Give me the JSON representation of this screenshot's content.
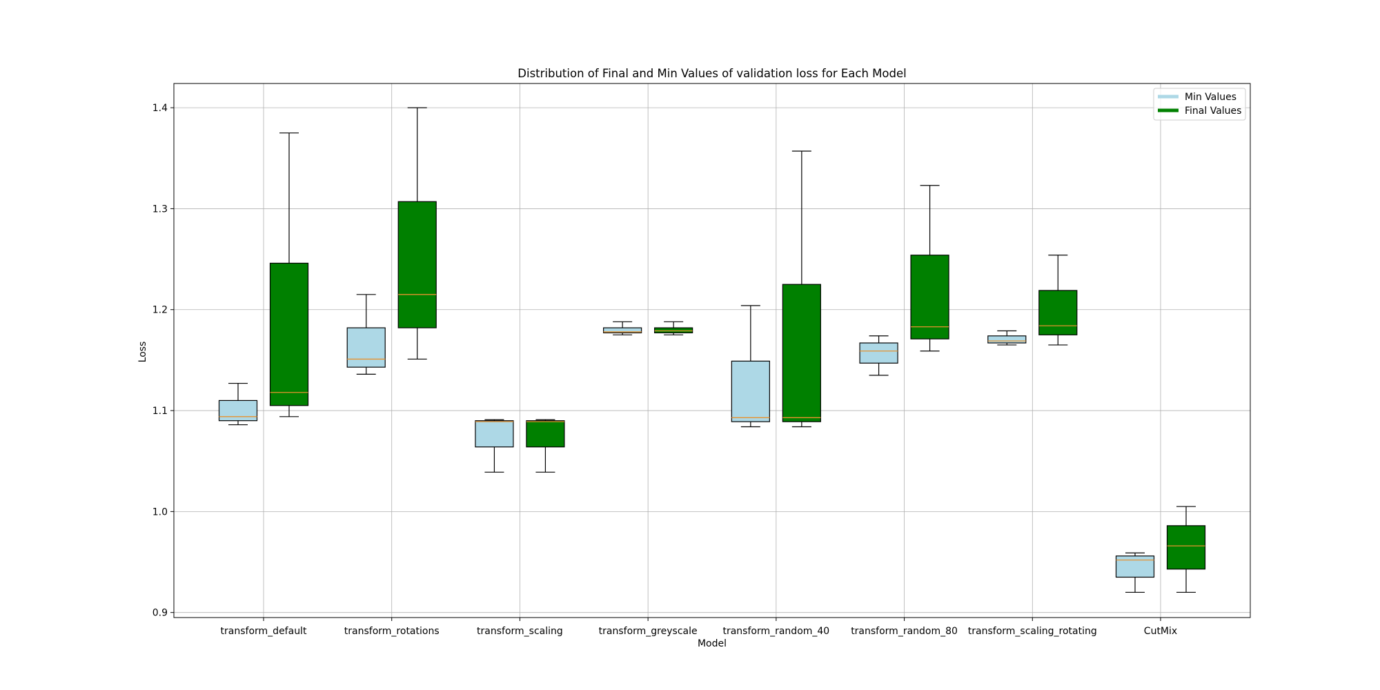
{
  "chart_data": {
    "type": "box",
    "title": "Distribution of Final and Min Values of validation loss for Each Model",
    "xlabel": "Model",
    "ylabel": "Loss",
    "ylim": [
      0.895,
      1.424
    ],
    "yticks": [
      "0.9",
      "1.0",
      "1.1",
      "1.2",
      "1.3",
      "1.4"
    ],
    "grid": true,
    "legend_position": "top-right",
    "categories": [
      "transform_default",
      "transform_rotations",
      "transform_scaling",
      "transform_greyscale",
      "transform_random_40",
      "transform_random_80",
      "transform_scaling_rotating",
      "CutMix"
    ],
    "series": [
      {
        "name": "Min Values",
        "color": "#add8e6",
        "boxes": [
          {
            "whislo": 1.086,
            "q1": 1.09,
            "med": 1.094,
            "q3": 1.11,
            "whishi": 1.127
          },
          {
            "whislo": 1.136,
            "q1": 1.143,
            "med": 1.151,
            "q3": 1.182,
            "whishi": 1.215
          },
          {
            "whislo": 1.039,
            "q1": 1.064,
            "med": 1.089,
            "q3": 1.09,
            "whishi": 1.091
          },
          {
            "whislo": 1.175,
            "q1": 1.177,
            "med": 1.178,
            "q3": 1.182,
            "whishi": 1.188
          },
          {
            "whislo": 1.084,
            "q1": 1.089,
            "med": 1.093,
            "q3": 1.149,
            "whishi": 1.204
          },
          {
            "whislo": 1.135,
            "q1": 1.147,
            "med": 1.159,
            "q3": 1.167,
            "whishi": 1.174
          },
          {
            "whislo": 1.165,
            "q1": 1.167,
            "med": 1.169,
            "q3": 1.174,
            "whishi": 1.179
          },
          {
            "whislo": 0.92,
            "q1": 0.935,
            "med": 0.952,
            "q3": 0.956,
            "whishi": 0.959
          }
        ]
      },
      {
        "name": "Final Values",
        "color": "#008000",
        "boxes": [
          {
            "whislo": 1.094,
            "q1": 1.105,
            "med": 1.118,
            "q3": 1.246,
            "whishi": 1.375
          },
          {
            "whislo": 1.151,
            "q1": 1.182,
            "med": 1.215,
            "q3": 1.307,
            "whishi": 1.4
          },
          {
            "whislo": 1.039,
            "q1": 1.064,
            "med": 1.089,
            "q3": 1.09,
            "whishi": 1.091
          },
          {
            "whislo": 1.175,
            "q1": 1.177,
            "med": 1.179,
            "q3": 1.182,
            "whishi": 1.188
          },
          {
            "whislo": 1.084,
            "q1": 1.089,
            "med": 1.093,
            "q3": 1.225,
            "whishi": 1.357
          },
          {
            "whislo": 1.159,
            "q1": 1.171,
            "med": 1.183,
            "q3": 1.254,
            "whishi": 1.323
          },
          {
            "whislo": 1.165,
            "q1": 1.175,
            "med": 1.184,
            "q3": 1.219,
            "whishi": 1.254
          },
          {
            "whislo": 0.92,
            "q1": 0.943,
            "med": 0.966,
            "q3": 0.986,
            "whishi": 1.005
          }
        ]
      }
    ],
    "median_color": "#e8922e"
  }
}
